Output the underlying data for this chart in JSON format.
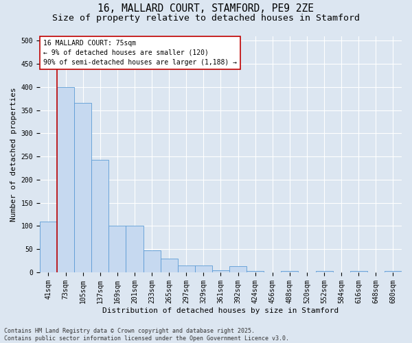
{
  "title_line1": "16, MALLARD COURT, STAMFORD, PE9 2ZE",
  "title_line2": "Size of property relative to detached houses in Stamford",
  "xlabel": "Distribution of detached houses by size in Stamford",
  "ylabel": "Number of detached properties",
  "categories": [
    "41sqm",
    "73sqm",
    "105sqm",
    "137sqm",
    "169sqm",
    "201sqm",
    "233sqm",
    "265sqm",
    "297sqm",
    "329sqm",
    "361sqm",
    "392sqm",
    "424sqm",
    "456sqm",
    "488sqm",
    "520sqm",
    "552sqm",
    "584sqm",
    "616sqm",
    "648sqm",
    "680sqm"
  ],
  "values": [
    110,
    400,
    365,
    243,
    100,
    100,
    48,
    30,
    15,
    15,
    5,
    14,
    3,
    0,
    3,
    0,
    3,
    0,
    3,
    0,
    3
  ],
  "bar_color": "#c6d9f0",
  "bar_edge_color": "#5b9bd5",
  "background_color": "#dce6f1",
  "grid_color": "#ffffff",
  "vline_color": "#c00000",
  "annotation_line1": "16 MALLARD COURT: 75sqm",
  "annotation_line2": "← 9% of detached houses are smaller (120)",
  "annotation_line3": "90% of semi-detached houses are larger (1,188) →",
  "annotation_box_facecolor": "#ffffff",
  "annotation_box_edgecolor": "#c00000",
  "footer_line1": "Contains HM Land Registry data © Crown copyright and database right 2025.",
  "footer_line2": "Contains public sector information licensed under the Open Government Licence v3.0.",
  "ylim_max": 510,
  "yticks": [
    0,
    50,
    100,
    150,
    200,
    250,
    300,
    350,
    400,
    450,
    500
  ],
  "title_fontsize": 10.5,
  "subtitle_fontsize": 9.5,
  "axis_label_fontsize": 8,
  "tick_fontsize": 7,
  "annotation_fontsize": 7,
  "footer_fontsize": 6
}
